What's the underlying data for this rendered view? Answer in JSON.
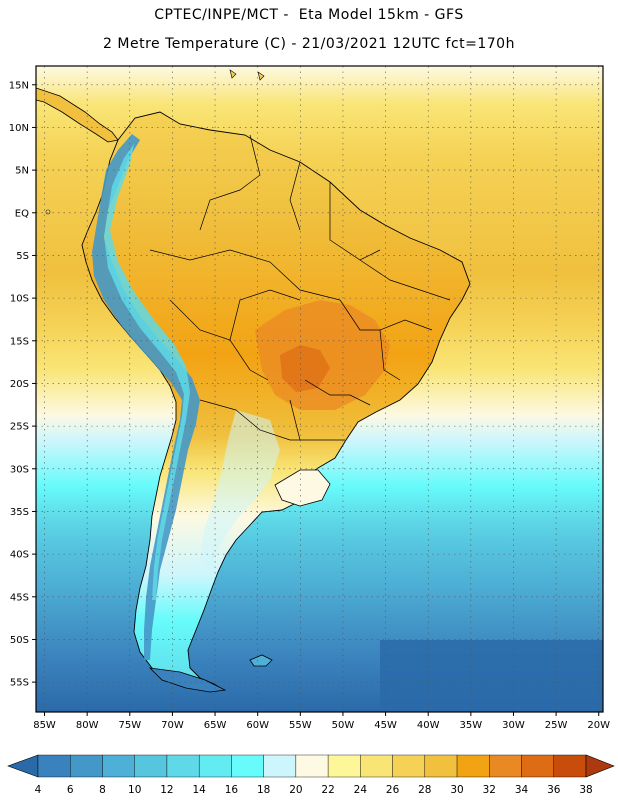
{
  "header": {
    "line1": "CPTEC/INPE/MCT -  Eta Model 15km - GFS",
    "line2": "2 Metre Temperature (C) - 21/03/2021 12UTC fct=170h"
  },
  "map": {
    "lat_labels": [
      "15N",
      "10N",
      "5N",
      "EQ",
      "5S",
      "10S",
      "15S",
      "20S",
      "25S",
      "30S",
      "35S",
      "40S",
      "45S",
      "50S",
      "55S"
    ],
    "lon_labels": [
      "85W",
      "80W",
      "75W",
      "70W",
      "65W",
      "60W",
      "55W",
      "50W",
      "45W",
      "40W",
      "35W",
      "30W",
      "25W",
      "20W"
    ],
    "lat_values": [
      15,
      10,
      5,
      0,
      -5,
      -10,
      -15,
      -20,
      -25,
      -30,
      -35,
      -40,
      -45,
      -50,
      -55
    ],
    "lon_values": [
      -85,
      -80,
      -75,
      -70,
      -65,
      -60,
      -55,
      -50,
      -45,
      -40,
      -35,
      -30,
      -25,
      -20
    ],
    "extent": {
      "lon_min": -86,
      "lon_max": -19.5,
      "lat_min": -58.5,
      "lat_max": 17.2
    }
  },
  "colorbar": {
    "labels": [
      "4",
      "6",
      "8",
      "10",
      "12",
      "14",
      "16",
      "18",
      "20",
      "22",
      "24",
      "26",
      "28",
      "30",
      "32",
      "34",
      "36",
      "38"
    ],
    "colors": [
      "#2a6aa9",
      "#3a82bd",
      "#4498c8",
      "#4eb0d6",
      "#56c6df",
      "#5fd9e8",
      "#62ecf2",
      "#67fbfb",
      "#cdf6fc",
      "#fdf9e2",
      "#fdf79a",
      "#f9e576",
      "#f5d255",
      "#f0c03e",
      "#f2a313",
      "#e98924",
      "#de6c15",
      "#c84c0a",
      "#ad3a0e"
    ]
  }
}
